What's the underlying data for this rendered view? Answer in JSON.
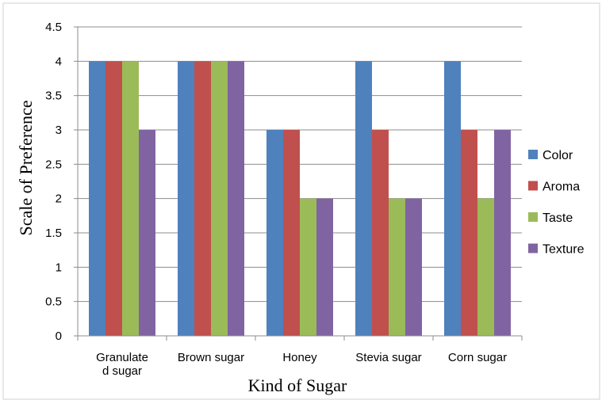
{
  "chart_data": {
    "type": "bar",
    "title": "",
    "xlabel": "Kind of Sugar",
    "ylabel": "Scale of Preference",
    "ylim": [
      0,
      4.5
    ],
    "yticks": [
      "0",
      "0.5",
      "1",
      "1.5",
      "2",
      "2.5",
      "3",
      "3.5",
      "4",
      "4.5"
    ],
    "categories": [
      [
        "Granulate",
        "d sugar"
      ],
      [
        "Brown sugar"
      ],
      [
        "Honey"
      ],
      [
        "Stevia sugar"
      ],
      [
        "Corn sugar"
      ]
    ],
    "series": [
      {
        "name": "Color",
        "color": "#4F81BD",
        "values": [
          4,
          4,
          3,
          4,
          4
        ]
      },
      {
        "name": "Aroma",
        "color": "#C0504D",
        "values": [
          4,
          4,
          3,
          3,
          3
        ]
      },
      {
        "name": "Taste",
        "color": "#9BBB59",
        "values": [
          4,
          4,
          2,
          2,
          2
        ]
      },
      {
        "name": "Texture",
        "color": "#8064A2",
        "values": [
          3,
          4,
          2,
          2,
          3
        ]
      }
    ],
    "grid": true,
    "legend": "right"
  }
}
